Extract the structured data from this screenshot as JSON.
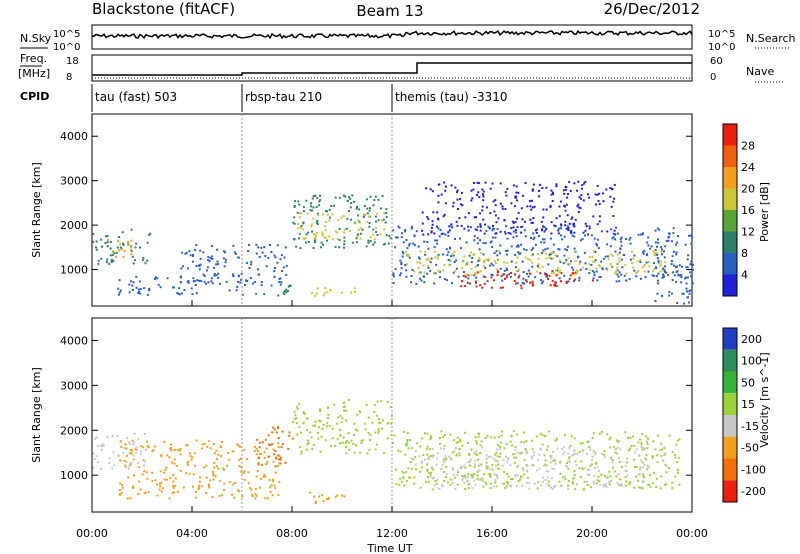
{
  "header": {
    "station": "Blackstone (fitACF)",
    "beam": "Beam 13",
    "date": "26/Dec/2012"
  },
  "meta_labels": {
    "nsky": "N.Sky",
    "nsearch": "N.Search",
    "freq": "Freq.",
    "freq_unit": "[MHz]",
    "nave": "Nave",
    "cpid": "CPID",
    "nsky_ticks": [
      "10^5",
      "10^0"
    ],
    "nsearch_ticks": [
      "10^5",
      "10^0"
    ],
    "freq_ticks": [
      "18",
      "8"
    ],
    "nave_ticks": [
      "60",
      "0"
    ]
  },
  "cpid_segments": [
    {
      "label": "tau (fast) 503",
      "start_hour": 0,
      "end_hour": 6
    },
    {
      "label": "rbsp-tau 210",
      "start_hour": 6,
      "end_hour": 12
    },
    {
      "label": "themis (tau) -3310",
      "start_hour": 12,
      "end_hour": 24
    }
  ],
  "chart_data": [
    {
      "type": "heatmap",
      "name": "power",
      "ylabel": "Slant Range [km]",
      "xlabel": "Time UT",
      "xlim": [
        0,
        24
      ],
      "ylim": [
        180,
        4500
      ],
      "yticks": [
        "1000",
        "2000",
        "3000",
        "4000"
      ],
      "colorbar": {
        "label": "Power [dB]",
        "ticks": [
          "4",
          "8",
          "12",
          "16",
          "20",
          "24",
          "28"
        ],
        "colors": [
          "#1f1fd6",
          "#2a5fc0",
          "#2e7f6a",
          "#58a63a",
          "#c8c83a",
          "#f0a020",
          "#f06010",
          "#e82010"
        ]
      },
      "regions": [
        {
          "t": [
            0.0,
            2.3
          ],
          "r": [
            1150,
            1950
          ],
          "level": 2
        },
        {
          "t": [
            0.5,
            1.8
          ],
          "r": [
            1300,
            1700
          ],
          "level": 5
        },
        {
          "t": [
            1.0,
            6.0
          ],
          "r": [
            450,
            900
          ],
          "level": 1
        },
        {
          "t": [
            3.5,
            7.8
          ],
          "r": [
            650,
            1600
          ],
          "level": 1
        },
        {
          "t": [
            6.5,
            8.0
          ],
          "r": [
            400,
            700
          ],
          "level": 2
        },
        {
          "t": [
            8.0,
            12.0
          ],
          "r": [
            1500,
            2700
          ],
          "level": 2
        },
        {
          "t": [
            8.2,
            11.8
          ],
          "r": [
            1700,
            2300
          ],
          "level": 4
        },
        {
          "t": [
            8.5,
            10.5
          ],
          "r": [
            400,
            650
          ],
          "level": 4
        },
        {
          "t": [
            12.0,
            23.5
          ],
          "r": [
            700,
            2000
          ],
          "level": 1
        },
        {
          "t": [
            12.5,
            23.0
          ],
          "r": [
            900,
            1450
          ],
          "level": 4
        },
        {
          "t": [
            14.5,
            20.0
          ],
          "r": [
            600,
            1000
          ],
          "level": 7
        },
        {
          "t": [
            13.0,
            21.0
          ],
          "r": [
            1800,
            3000
          ],
          "level": 0
        },
        {
          "t": [
            22.5,
            24.0
          ],
          "r": [
            200,
            1800
          ],
          "level": 1
        }
      ]
    },
    {
      "type": "heatmap",
      "name": "velocity",
      "ylabel": "Slant Range [km]",
      "xlabel": "Time UT",
      "xlim": [
        0,
        24
      ],
      "ylim": [
        180,
        4500
      ],
      "yticks": [
        "1000",
        "2000",
        "3000",
        "4000"
      ],
      "xticks": [
        "00:00",
        "04:00",
        "08:00",
        "12:00",
        "16:00",
        "20:00",
        "00:00"
      ],
      "colorbar": {
        "label": "Velocity [m s^-1]",
        "ticks": [
          "200",
          "100",
          "50",
          "15",
          "-15",
          "-50",
          "-100",
          "-200"
        ],
        "colors": [
          "#1f3fc0",
          "#2c8c5a",
          "#3ab23a",
          "#9bd23a",
          "#c8c8c8",
          "#f0a020",
          "#f07010",
          "#e82010"
        ]
      },
      "regions": [
        {
          "t": [
            0.0,
            2.3
          ],
          "r": [
            1150,
            1950
          ],
          "level": 4
        },
        {
          "t": [
            1.0,
            7.5
          ],
          "r": [
            500,
            1800
          ],
          "level": 5
        },
        {
          "t": [
            6.5,
            8.0
          ],
          "r": [
            1200,
            2100
          ],
          "level": 6
        },
        {
          "t": [
            8.0,
            12.0
          ],
          "r": [
            1500,
            2700
          ],
          "level": 3
        },
        {
          "t": [
            8.5,
            10.5
          ],
          "r": [
            400,
            650
          ],
          "level": 5
        },
        {
          "t": [
            12.0,
            23.5
          ],
          "r": [
            700,
            2000
          ],
          "level": 3
        },
        {
          "t": [
            12.5,
            23.0
          ],
          "r": [
            1100,
            1650
          ],
          "level": 4
        },
        {
          "t": [
            13.5,
            22.0
          ],
          "r": [
            700,
            1050
          ],
          "level": 4
        }
      ]
    }
  ]
}
